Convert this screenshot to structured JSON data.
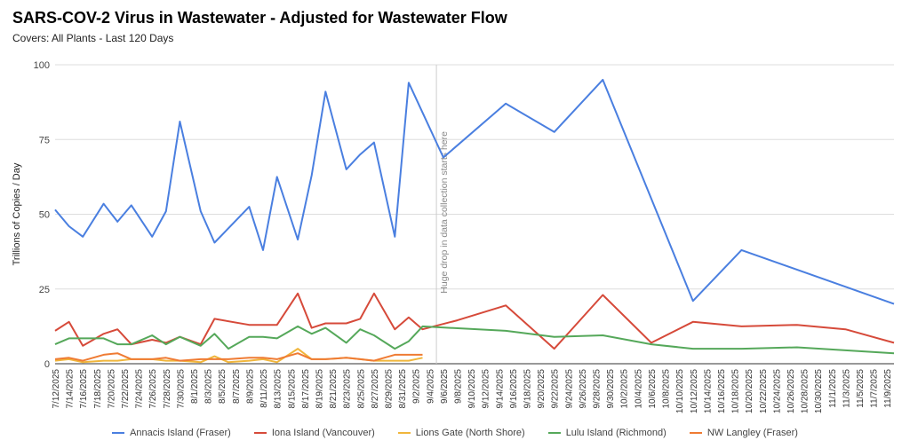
{
  "title": "SARS-COV-2 Virus in Wastewater - Adjusted for Wastewater Flow",
  "subtitle": "Covers: All Plants - Last 120 Days",
  "chart_data": {
    "type": "line",
    "title": "SARS-COV-2 Virus in Wastewater - Adjusted for Wastewater Flow",
    "subtitle": "Covers: All Plants - Last 120 Days",
    "xlabel": "",
    "ylabel": "Trillions of Copies / Day",
    "ylim": [
      0,
      100
    ],
    "yticks": [
      0,
      25,
      50,
      75,
      100
    ],
    "xlim": [
      "2025-07-12",
      "2025-11-10"
    ],
    "x_tick_labels": [
      "7/12/2025",
      "7/14/2025",
      "7/16/2025",
      "7/18/2025",
      "7/20/2025",
      "7/22/2025",
      "7/24/2025",
      "7/26/2025",
      "7/28/2025",
      "7/30/2025",
      "8/1/2025",
      "8/3/2025",
      "8/5/2025",
      "8/7/2025",
      "8/9/2025",
      "8/11/2025",
      "8/13/2025",
      "8/15/2025",
      "8/17/2025",
      "8/19/2025",
      "8/21/2025",
      "8/23/2025",
      "8/25/2025",
      "8/27/2025",
      "8/29/2025",
      "8/31/2025",
      "9/2/2025",
      "9/4/2025",
      "9/6/2025",
      "9/8/2025",
      "9/10/2025",
      "9/12/2025",
      "9/14/2025",
      "9/16/2025",
      "9/18/2025",
      "9/20/2025",
      "9/22/2025",
      "9/24/2025",
      "9/26/2025",
      "9/28/2025",
      "9/30/2025",
      "10/2/2025",
      "10/4/2025",
      "10/6/2025",
      "10/8/2025",
      "10/10/2025",
      "10/12/2025",
      "10/14/2025",
      "10/16/2025",
      "10/18/2025",
      "10/20/2025",
      "10/22/2025",
      "10/24/2025",
      "10/26/2025",
      "10/28/2025",
      "10/30/2025",
      "11/1/2025",
      "11/3/2025",
      "11/5/2025",
      "11/7/2025",
      "11/9/2025"
    ],
    "grid": "horizontal",
    "legend_position": "bottom",
    "annotation": {
      "x": "2025-09-05",
      "text": "Huge drop in data collection starts here"
    },
    "series": [
      {
        "name": "Annacis Island (Fraser)",
        "color": "#4a7fe0",
        "points": [
          [
            "2025-07-12",
            51.5
          ],
          [
            "2025-07-14",
            46
          ],
          [
            "2025-07-16",
            42.5
          ],
          [
            "2025-07-19",
            53.5
          ],
          [
            "2025-07-21",
            47.5
          ],
          [
            "2025-07-23",
            53
          ],
          [
            "2025-07-26",
            42.5
          ],
          [
            "2025-07-28",
            51
          ],
          [
            "2025-07-30",
            81
          ],
          [
            "2025-08-02",
            51
          ],
          [
            "2025-08-04",
            40.5
          ],
          [
            "2025-08-09",
            52.5
          ],
          [
            "2025-08-11",
            38
          ],
          [
            "2025-08-13",
            62.5
          ],
          [
            "2025-08-16",
            41.5
          ],
          [
            "2025-08-18",
            63
          ],
          [
            "2025-08-20",
            91
          ],
          [
            "2025-08-23",
            65
          ],
          [
            "2025-08-25",
            70
          ],
          [
            "2025-08-27",
            74
          ],
          [
            "2025-08-30",
            42.5
          ],
          [
            "2025-09-01",
            94
          ],
          [
            "2025-09-03",
            84
          ],
          [
            "2025-09-06",
            69
          ],
          [
            "2025-09-15",
            87
          ],
          [
            "2025-09-22",
            77.5
          ],
          [
            "2025-09-29",
            95
          ],
          [
            "2025-10-12",
            21
          ],
          [
            "2025-10-19",
            38
          ],
          [
            "2025-11-10",
            20
          ]
        ]
      },
      {
        "name": "Iona Island (Vancouver)",
        "color": "#d64a3a",
        "points": [
          [
            "2025-07-12",
            11
          ],
          [
            "2025-07-14",
            14
          ],
          [
            "2025-07-16",
            6
          ],
          [
            "2025-07-19",
            10
          ],
          [
            "2025-07-21",
            11.5
          ],
          [
            "2025-07-23",
            6.5
          ],
          [
            "2025-07-26",
            8
          ],
          [
            "2025-07-28",
            7
          ],
          [
            "2025-07-30",
            9
          ],
          [
            "2025-08-02",
            6.5
          ],
          [
            "2025-08-04",
            15
          ],
          [
            "2025-08-09",
            13
          ],
          [
            "2025-08-11",
            13
          ],
          [
            "2025-08-13",
            13
          ],
          [
            "2025-08-16",
            23.5
          ],
          [
            "2025-08-18",
            12
          ],
          [
            "2025-08-20",
            13.5
          ],
          [
            "2025-08-23",
            13.5
          ],
          [
            "2025-08-25",
            15
          ],
          [
            "2025-08-27",
            23.5
          ],
          [
            "2025-08-30",
            11.5
          ],
          [
            "2025-09-01",
            15.5
          ],
          [
            "2025-09-03",
            11.5
          ],
          [
            "2025-09-08",
            14.5
          ],
          [
            "2025-09-15",
            19.5
          ],
          [
            "2025-09-22",
            5
          ],
          [
            "2025-09-29",
            23
          ],
          [
            "2025-10-06",
            7
          ],
          [
            "2025-10-12",
            14
          ],
          [
            "2025-10-19",
            12.5
          ],
          [
            "2025-10-27",
            13
          ],
          [
            "2025-11-03",
            11.5
          ],
          [
            "2025-11-10",
            7
          ]
        ]
      },
      {
        "name": "Lions Gate (North Shore)",
        "color": "#f0b63c",
        "points": [
          [
            "2025-07-12",
            1
          ],
          [
            "2025-07-14",
            1.5
          ],
          [
            "2025-07-16",
            0.5
          ],
          [
            "2025-07-19",
            1
          ],
          [
            "2025-07-21",
            1
          ],
          [
            "2025-07-23",
            1.5
          ],
          [
            "2025-07-26",
            1.5
          ],
          [
            "2025-07-28",
            1
          ],
          [
            "2025-07-30",
            1
          ],
          [
            "2025-08-02",
            0.5
          ],
          [
            "2025-08-04",
            2.5
          ],
          [
            "2025-08-06",
            0.5
          ],
          [
            "2025-08-09",
            1
          ],
          [
            "2025-08-11",
            1.5
          ],
          [
            "2025-08-13",
            0.5
          ],
          [
            "2025-08-16",
            5
          ],
          [
            "2025-08-18",
            1.5
          ],
          [
            "2025-08-20",
            1.5
          ],
          [
            "2025-08-23",
            2
          ],
          [
            "2025-08-25",
            1.5
          ],
          [
            "2025-08-27",
            1
          ],
          [
            "2025-08-30",
            1
          ],
          [
            "2025-09-01",
            1
          ],
          [
            "2025-09-03",
            2
          ]
        ]
      },
      {
        "name": "Lulu Island (Richmond)",
        "color": "#55a85a",
        "points": [
          [
            "2025-07-12",
            6.5
          ],
          [
            "2025-07-14",
            8.5
          ],
          [
            "2025-07-16",
            8.5
          ],
          [
            "2025-07-19",
            8.5
          ],
          [
            "2025-07-21",
            6.5
          ],
          [
            "2025-07-23",
            6.5
          ],
          [
            "2025-07-26",
            9.5
          ],
          [
            "2025-07-28",
            6.5
          ],
          [
            "2025-07-30",
            9
          ],
          [
            "2025-08-02",
            6
          ],
          [
            "2025-08-04",
            10
          ],
          [
            "2025-08-06",
            5
          ],
          [
            "2025-08-09",
            9
          ],
          [
            "2025-08-11",
            9
          ],
          [
            "2025-08-13",
            8.5
          ],
          [
            "2025-08-16",
            12.5
          ],
          [
            "2025-08-18",
            10
          ],
          [
            "2025-08-20",
            12
          ],
          [
            "2025-08-23",
            7
          ],
          [
            "2025-08-25",
            11.5
          ],
          [
            "2025-08-27",
            9.5
          ],
          [
            "2025-08-30",
            5
          ],
          [
            "2025-09-01",
            7.5
          ],
          [
            "2025-09-03",
            12.5
          ],
          [
            "2025-09-15",
            11
          ],
          [
            "2025-09-22",
            9
          ],
          [
            "2025-09-29",
            9.5
          ],
          [
            "2025-10-06",
            6.5
          ],
          [
            "2025-10-12",
            5
          ],
          [
            "2025-10-19",
            5
          ],
          [
            "2025-10-27",
            5.5
          ],
          [
            "2025-11-10",
            3.5
          ]
        ]
      },
      {
        "name": "NW Langley (Fraser)",
        "color": "#ef7b33",
        "points": [
          [
            "2025-07-12",
            1.5
          ],
          [
            "2025-07-14",
            2
          ],
          [
            "2025-07-16",
            1
          ],
          [
            "2025-07-19",
            3
          ],
          [
            "2025-07-21",
            3.5
          ],
          [
            "2025-07-23",
            1.5
          ],
          [
            "2025-07-26",
            1.5
          ],
          [
            "2025-07-28",
            2
          ],
          [
            "2025-07-30",
            1
          ],
          [
            "2025-08-02",
            1.5
          ],
          [
            "2025-08-04",
            1.5
          ],
          [
            "2025-08-06",
            1.5
          ],
          [
            "2025-08-09",
            2
          ],
          [
            "2025-08-11",
            2
          ],
          [
            "2025-08-13",
            1.5
          ],
          [
            "2025-08-16",
            3.5
          ],
          [
            "2025-08-18",
            1.5
          ],
          [
            "2025-08-20",
            1.5
          ],
          [
            "2025-08-23",
            2
          ],
          [
            "2025-08-25",
            1.5
          ],
          [
            "2025-08-27",
            1
          ],
          [
            "2025-08-30",
            3
          ],
          [
            "2025-09-01",
            3
          ],
          [
            "2025-09-03",
            3
          ]
        ]
      }
    ]
  }
}
